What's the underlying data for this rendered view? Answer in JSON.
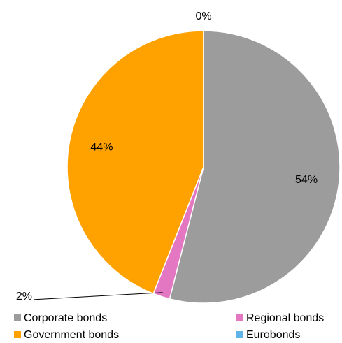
{
  "chart_data": {
    "type": "pie",
    "categories": [
      "Corporate bonds",
      "Regional bonds",
      "Government bonds",
      "Eurobonds"
    ],
    "values": [
      54,
      2,
      44,
      0
    ],
    "value_labels": [
      "54%",
      "2%",
      "44%",
      "0%"
    ],
    "colors": [
      "#9c9c9c",
      "#e377c2",
      "#ffa200",
      "#5fb3e8"
    ],
    "legend": "bottom"
  }
}
